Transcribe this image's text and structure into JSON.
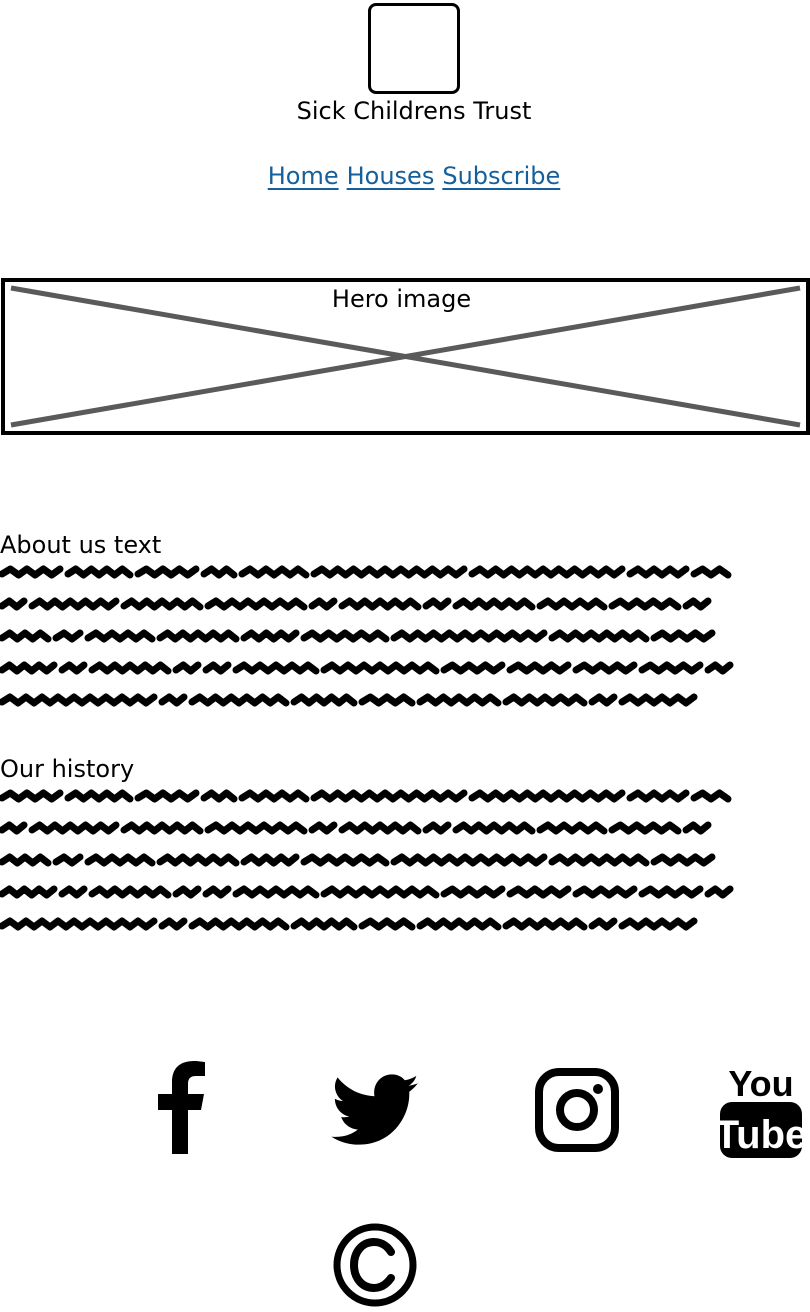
{
  "header": {
    "logo_icon": "logo-placeholder-icon",
    "site_title": "Sick Childrens Trust"
  },
  "nav": {
    "items": [
      {
        "label": "Home"
      },
      {
        "label": "Houses"
      },
      {
        "label": "Subscribe"
      }
    ]
  },
  "hero": {
    "label": "Hero image",
    "placeholder_icon": "image-placeholder-cross-icon"
  },
  "sections": [
    {
      "title": "About us text",
      "content": "scribbled-placeholder-text"
    },
    {
      "title": "Our history",
      "content": "scribbled-placeholder-text"
    }
  ],
  "footer": {
    "social_icons": [
      "facebook-icon",
      "twitter-icon",
      "instagram-icon",
      "youtube-icon"
    ],
    "youtube_text_top": "You",
    "youtube_text_bottom": "Tube",
    "copyright_icon": "copyright-icon"
  },
  "colors": {
    "link": "#15609c",
    "text": "#000000",
    "placeholder_cross": "#5a5a5a"
  }
}
